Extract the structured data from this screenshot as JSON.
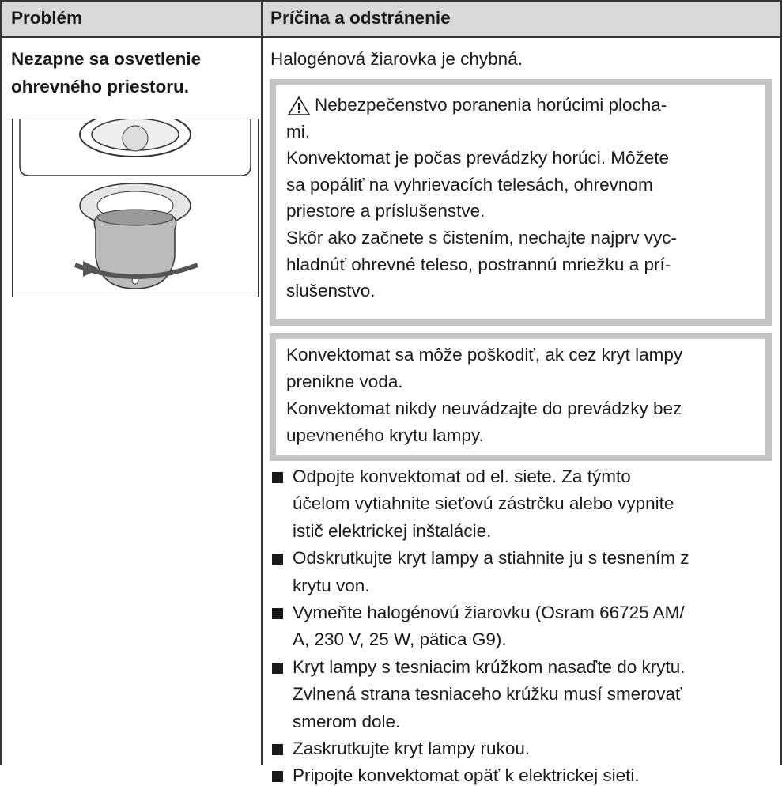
{
  "header": {
    "col1": "Problém",
    "col2": "Príčina a odstránenie"
  },
  "problem": {
    "lines": [
      "Nezapne sa osvetlenie",
      "ohrevného priestoru."
    ]
  },
  "cause": "Halogénová žiarovka je chybná.",
  "warning": {
    "lines": [
      "Nebezpečenstvo poranenia horúcimi plocha-",
      "mi.",
      "Konvektomat je počas prevádzky horúci. Môžete",
      "sa popáliť na vyhrievacích telesách, ohrevnom",
      "priestore a príslušenstve.",
      "Skôr ako začnete s čistením, nechajte najprv vyc-",
      "hladnúť ohrevné teleso, postrannú mriežku a prí-",
      "slušenstvo."
    ]
  },
  "caution": {
    "lines": [
      "Konvektomat sa môže poškodiť, ak cez kryt lampy",
      "prenikne voda.",
      "Konvektomat nikdy neuvádzajte do prevádzky bez",
      "upevneného krytu lampy."
    ]
  },
  "steps": [
    {
      "lines": [
        "Odpojte konvektomat od el. siete. Za týmto",
        "účelom vytiahnite sieťovú zástrčku alebo vypnite",
        "istič elektrickej inštalácie."
      ]
    },
    {
      "lines": [
        "Odskrutkujte kryt lampy a stiahnite ju s tesnením z",
        "krytu von."
      ]
    },
    {
      "lines": [
        "Vymeňte halogénovú žiarovku (Osram 66725 AM/",
        "A, 230 V, 25 W, pätica G9)."
      ]
    },
    {
      "lines": [
        "Kryt lampy s tesniacim krúžkom nasaďte do krytu.",
        "Zvlnená strana tesniaceho krúžku musí smerovať",
        "smerom dole."
      ]
    },
    {
      "lines": [
        "Zaskrutkujte kryt lampy rukou."
      ]
    },
    {
      "lines": [
        "Pripojte konvektomat opäť k elektrickej sieti."
      ]
    }
  ]
}
